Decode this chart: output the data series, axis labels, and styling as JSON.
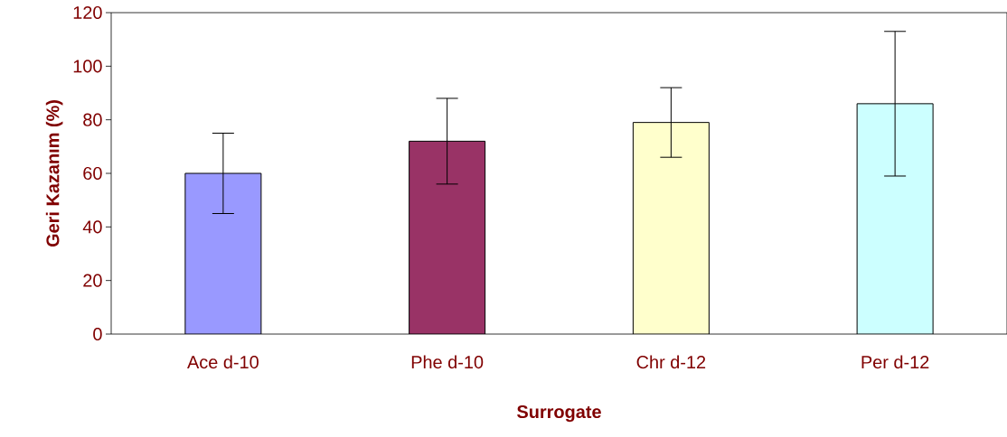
{
  "chart_data": {
    "type": "bar",
    "xlabel": "Surrogate",
    "ylabel": "Geri Kazanım (%)",
    "categories": [
      "Ace d-10",
      "Phe d-10",
      "Chr d-12",
      "Per d-12"
    ],
    "values": [
      60,
      72,
      79,
      86
    ],
    "errors": [
      15,
      16,
      13,
      27
    ],
    "colors": [
      "#9999ff",
      "#993366",
      "#ffffcc",
      "#ccffff"
    ],
    "ylim": [
      0,
      120
    ],
    "yticks": [
      0,
      20,
      40,
      60,
      80,
      100,
      120
    ],
    "grid": false
  }
}
